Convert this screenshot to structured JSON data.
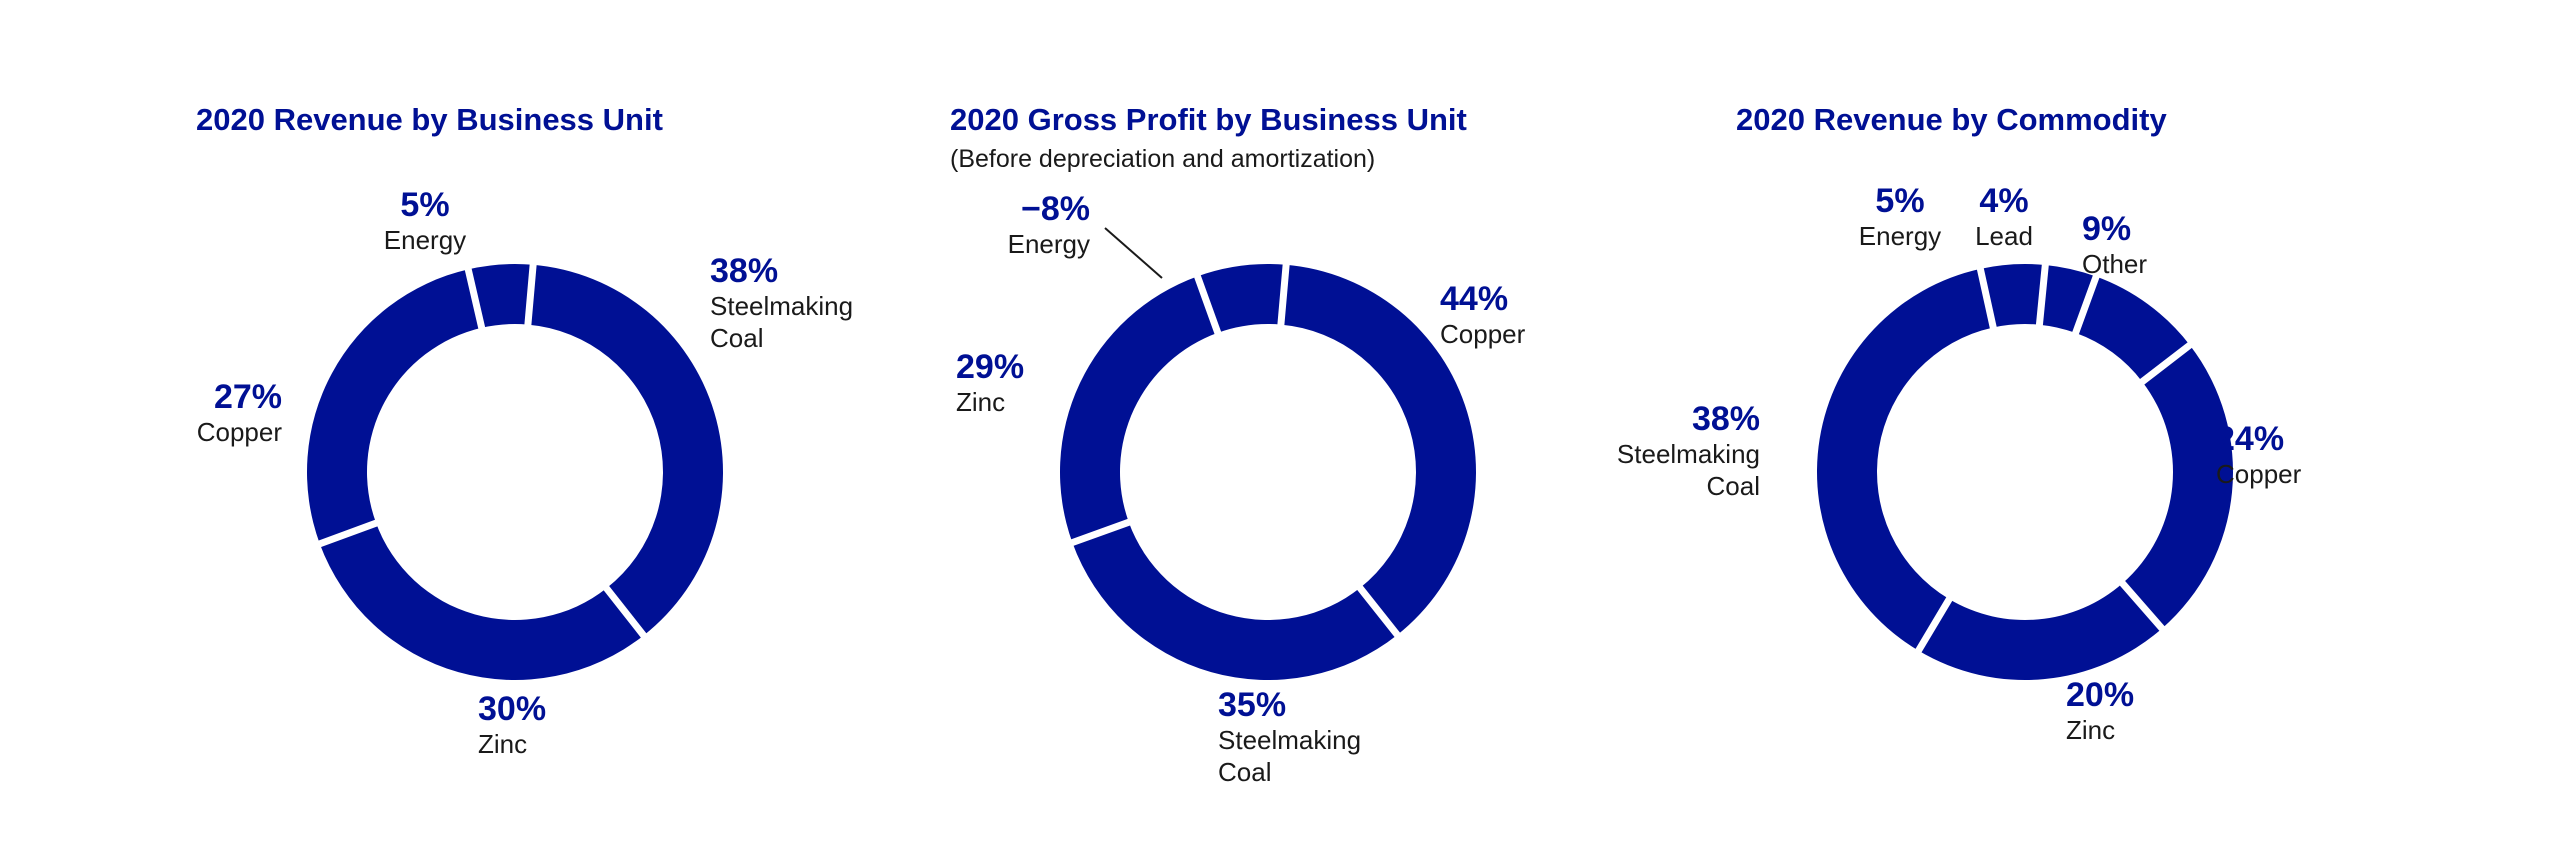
{
  "colors": {
    "slice": "#001094",
    "separator": "#ffffff",
    "text": "#1a1a1a"
  },
  "chart_data": [
    {
      "type": "pie",
      "title": "2020 Revenue by Business Unit",
      "subtitle": "",
      "slices": [
        {
          "label": "Steelmaking Coal",
          "value": 38,
          "display": "38%"
        },
        {
          "label": "Zinc",
          "value": 30,
          "display": "30%"
        },
        {
          "label": "Copper",
          "value": 27,
          "display": "27%"
        },
        {
          "label": "Energy",
          "value": 5,
          "display": "5%"
        }
      ]
    },
    {
      "type": "pie",
      "title": "2020 Gross Profit by Business Unit",
      "subtitle": "(Before depreciation and amortization)",
      "slices": [
        {
          "label": "Copper",
          "value": 44,
          "display": "44%"
        },
        {
          "label": "Steelmaking Coal",
          "value": 35,
          "display": "35%"
        },
        {
          "label": "Zinc",
          "value": 29,
          "display": "29%"
        },
        {
          "label": "Energy",
          "value": -8,
          "display": "−8%"
        }
      ]
    },
    {
      "type": "pie",
      "title": "2020 Revenue by Commodity",
      "subtitle": "",
      "slices": [
        {
          "label": "Other",
          "value": 9,
          "display": "9%"
        },
        {
          "label": "Copper",
          "value": 24,
          "display": "24%"
        },
        {
          "label": "Zinc",
          "value": 20,
          "display": "20%"
        },
        {
          "label": "Steelmaking Coal",
          "value": 38,
          "display": "38%"
        },
        {
          "label": "Energy",
          "value": 5,
          "display": "5%"
        },
        {
          "label": "Lead",
          "value": 4,
          "display": "4%"
        }
      ]
    }
  ]
}
